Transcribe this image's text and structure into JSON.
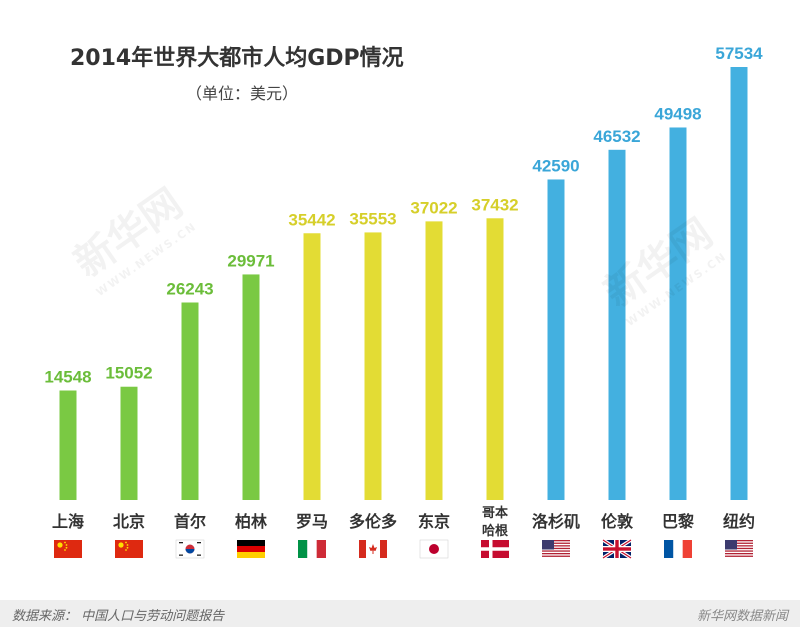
{
  "chart_data": {
    "type": "bar",
    "title": "2014年世界大都市人均GDP情况",
    "subtitle": "（单位：美元）",
    "categories": [
      "上海",
      "北京",
      "首尔",
      "柏林",
      "罗马",
      "多伦多",
      "东京",
      "哥本哈根",
      "洛杉矶",
      "伦敦",
      "巴黎",
      "纽约"
    ],
    "category_lines": [
      [
        "上海"
      ],
      [
        "北京"
      ],
      [
        "首尔"
      ],
      [
        "柏林"
      ],
      [
        "罗马"
      ],
      [
        "多伦多"
      ],
      [
        "东京"
      ],
      [
        "哥本",
        "哈根"
      ],
      [
        "洛杉矶"
      ],
      [
        "伦敦"
      ],
      [
        "巴黎"
      ],
      [
        "纽约"
      ]
    ],
    "values": [
      14548,
      15052,
      26243,
      29971,
      35442,
      35553,
      37022,
      37432,
      42590,
      46532,
      49498,
      57534
    ],
    "value_labels": [
      "14548",
      "15052",
      "26243",
      "29971",
      "35442",
      "35553",
      "37022",
      "37432",
      "42590",
      "46532",
      "49498",
      "57534"
    ],
    "color_groups": [
      "green",
      "green",
      "green",
      "green",
      "yellow",
      "yellow",
      "yellow",
      "yellow",
      "blue",
      "blue",
      "blue",
      "blue"
    ],
    "flags": [
      "china-flag-icon",
      "china-flag-icon",
      "south-korea-flag-icon",
      "germany-flag-icon",
      "italy-flag-icon",
      "canada-flag-icon",
      "japan-flag-icon",
      "denmark-flag-icon",
      "usa-flag-icon",
      "uk-flag-icon",
      "france-flag-icon",
      "usa-flag-icon"
    ],
    "ylim": [
      0,
      57534
    ],
    "grid": false
  },
  "colors": {
    "green": "#7ac943",
    "yellow": "#e3dc34",
    "blue": "#43b0e0",
    "green_text": "#6bbd3a",
    "yellow_text": "#d6cf2a",
    "blue_text": "#3aa6d8"
  },
  "footer": {
    "source": "数据来源：  中国人口与劳动问题报告",
    "brand": "新华网数据新闻"
  },
  "watermark": {
    "text": "新华网",
    "sub": "WWW.NEWS.CN"
  }
}
